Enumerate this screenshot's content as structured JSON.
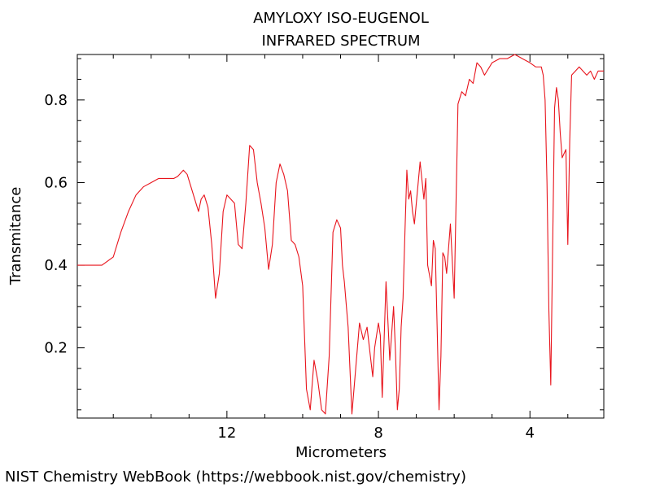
{
  "chart_data": {
    "type": "line",
    "title": "AMYLOXY ISO-EUGENOL",
    "subtitle": "INFRARED SPECTRUM",
    "xlabel": "Micrometers",
    "ylabel": "Transmitance",
    "x_reversed": true,
    "xlim": [
      15.95,
      2.05
    ],
    "ylim": [
      0.03,
      0.91
    ],
    "x_ticks": [
      12,
      8,
      4
    ],
    "y_ticks": [
      0.2,
      0.4,
      0.6,
      0.8
    ],
    "line_color": "#e8141c",
    "grid": false,
    "series": [
      {
        "x": [
          15.95,
          15.6,
          15.3,
          15.0,
          14.8,
          14.6,
          14.4,
          14.2,
          14.0,
          13.8,
          13.6,
          13.4,
          13.3,
          13.15,
          13.05,
          12.95,
          12.85,
          12.75,
          12.68,
          12.6,
          12.5,
          12.4,
          12.3,
          12.2,
          12.1,
          12.0,
          11.9,
          11.8,
          11.7,
          11.6,
          11.5,
          11.4,
          11.3,
          11.2,
          11.1,
          11.0,
          10.9,
          10.8,
          10.7,
          10.6,
          10.5,
          10.4,
          10.3,
          10.2,
          10.1,
          10.0,
          9.9,
          9.8,
          9.7,
          9.6,
          9.5,
          9.4,
          9.3,
          9.2,
          9.1,
          9.0,
          8.95,
          8.9,
          8.8,
          8.7,
          8.6,
          8.5,
          8.4,
          8.3,
          8.2,
          8.15,
          8.1,
          8.0,
          7.95,
          7.9,
          7.8,
          7.7,
          7.6,
          7.55,
          7.5,
          7.45,
          7.4,
          7.35,
          7.3,
          7.25,
          7.2,
          7.15,
          7.1,
          7.05,
          7.0,
          6.9,
          6.8,
          6.75,
          6.7,
          6.6,
          6.55,
          6.5,
          6.45,
          6.4,
          6.35,
          6.3,
          6.25,
          6.2,
          6.1,
          6.0,
          5.9,
          5.8,
          5.7,
          5.6,
          5.5,
          5.4,
          5.3,
          5.2,
          5.0,
          4.8,
          4.6,
          4.4,
          4.2,
          4.0,
          3.85,
          3.7,
          3.65,
          3.6,
          3.55,
          3.5,
          3.45,
          3.4,
          3.35,
          3.3,
          3.25,
          3.2,
          3.15,
          3.1,
          3.05,
          3.0,
          2.95,
          2.9,
          2.8,
          2.7,
          2.6,
          2.5,
          2.4,
          2.3,
          2.2,
          2.1,
          2.05
        ],
        "y": [
          0.4,
          0.4,
          0.4,
          0.42,
          0.48,
          0.53,
          0.57,
          0.59,
          0.6,
          0.61,
          0.61,
          0.61,
          0.615,
          0.63,
          0.62,
          0.59,
          0.56,
          0.53,
          0.56,
          0.57,
          0.54,
          0.45,
          0.32,
          0.38,
          0.53,
          0.57,
          0.56,
          0.55,
          0.45,
          0.44,
          0.55,
          0.69,
          0.68,
          0.6,
          0.55,
          0.49,
          0.39,
          0.45,
          0.6,
          0.645,
          0.62,
          0.58,
          0.46,
          0.45,
          0.42,
          0.35,
          0.1,
          0.05,
          0.17,
          0.12,
          0.05,
          0.04,
          0.18,
          0.48,
          0.51,
          0.49,
          0.4,
          0.36,
          0.25,
          0.04,
          0.15,
          0.26,
          0.22,
          0.25,
          0.17,
          0.13,
          0.2,
          0.26,
          0.23,
          0.08,
          0.36,
          0.17,
          0.3,
          0.19,
          0.05,
          0.1,
          0.25,
          0.32,
          0.48,
          0.63,
          0.56,
          0.58,
          0.53,
          0.5,
          0.55,
          0.65,
          0.56,
          0.61,
          0.4,
          0.35,
          0.46,
          0.44,
          0.25,
          0.05,
          0.18,
          0.43,
          0.42,
          0.38,
          0.5,
          0.32,
          0.79,
          0.82,
          0.81,
          0.85,
          0.84,
          0.89,
          0.88,
          0.86,
          0.89,
          0.9,
          0.9,
          0.91,
          0.9,
          0.89,
          0.88,
          0.88,
          0.86,
          0.8,
          0.6,
          0.29,
          0.11,
          0.45,
          0.78,
          0.83,
          0.8,
          0.72,
          0.66,
          0.67,
          0.68,
          0.45,
          0.7,
          0.86,
          0.87,
          0.88,
          0.87,
          0.86,
          0.87,
          0.85,
          0.87,
          0.87,
          0.87
        ]
      }
    ]
  },
  "footer": {
    "text": "NIST Chemistry WebBook (https://webbook.nist.gov/chemistry)"
  }
}
